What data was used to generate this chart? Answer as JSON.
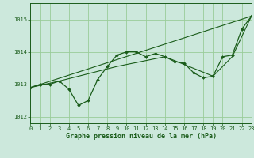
{
  "title": "Graphe pression niveau de la mer (hPa)",
  "bg_color": "#cce8dc",
  "grid_color": "#99cc99",
  "line_color": "#1a5c1a",
  "xlim": [
    0,
    23
  ],
  "ylim": [
    1011.8,
    1015.5
  ],
  "yticks": [
    1012,
    1013,
    1014,
    1015
  ],
  "xticks": [
    0,
    1,
    2,
    3,
    4,
    5,
    6,
    7,
    8,
    9,
    10,
    11,
    12,
    13,
    14,
    15,
    16,
    17,
    18,
    19,
    20,
    21,
    22,
    23
  ],
  "series1_x": [
    0,
    1,
    2,
    3,
    4,
    5,
    6,
    7,
    8,
    9,
    10,
    11,
    12,
    13,
    14,
    15,
    16,
    17,
    18,
    19,
    20,
    21,
    22,
    23
  ],
  "series1_y": [
    1012.9,
    1013.0,
    1013.0,
    1013.1,
    1012.85,
    1012.35,
    1012.5,
    1013.15,
    1013.55,
    1013.9,
    1014.0,
    1014.0,
    1013.85,
    1013.95,
    1013.85,
    1013.7,
    1013.65,
    1013.35,
    1013.2,
    1013.25,
    1013.85,
    1013.9,
    1014.7,
    1015.1
  ],
  "series2_x": [
    0,
    23
  ],
  "series2_y": [
    1012.9,
    1015.1
  ],
  "series3_x": [
    0,
    3,
    9,
    14,
    19,
    21,
    23
  ],
  "series3_y": [
    1012.9,
    1013.1,
    1013.55,
    1013.85,
    1013.25,
    1013.85,
    1015.1
  ]
}
